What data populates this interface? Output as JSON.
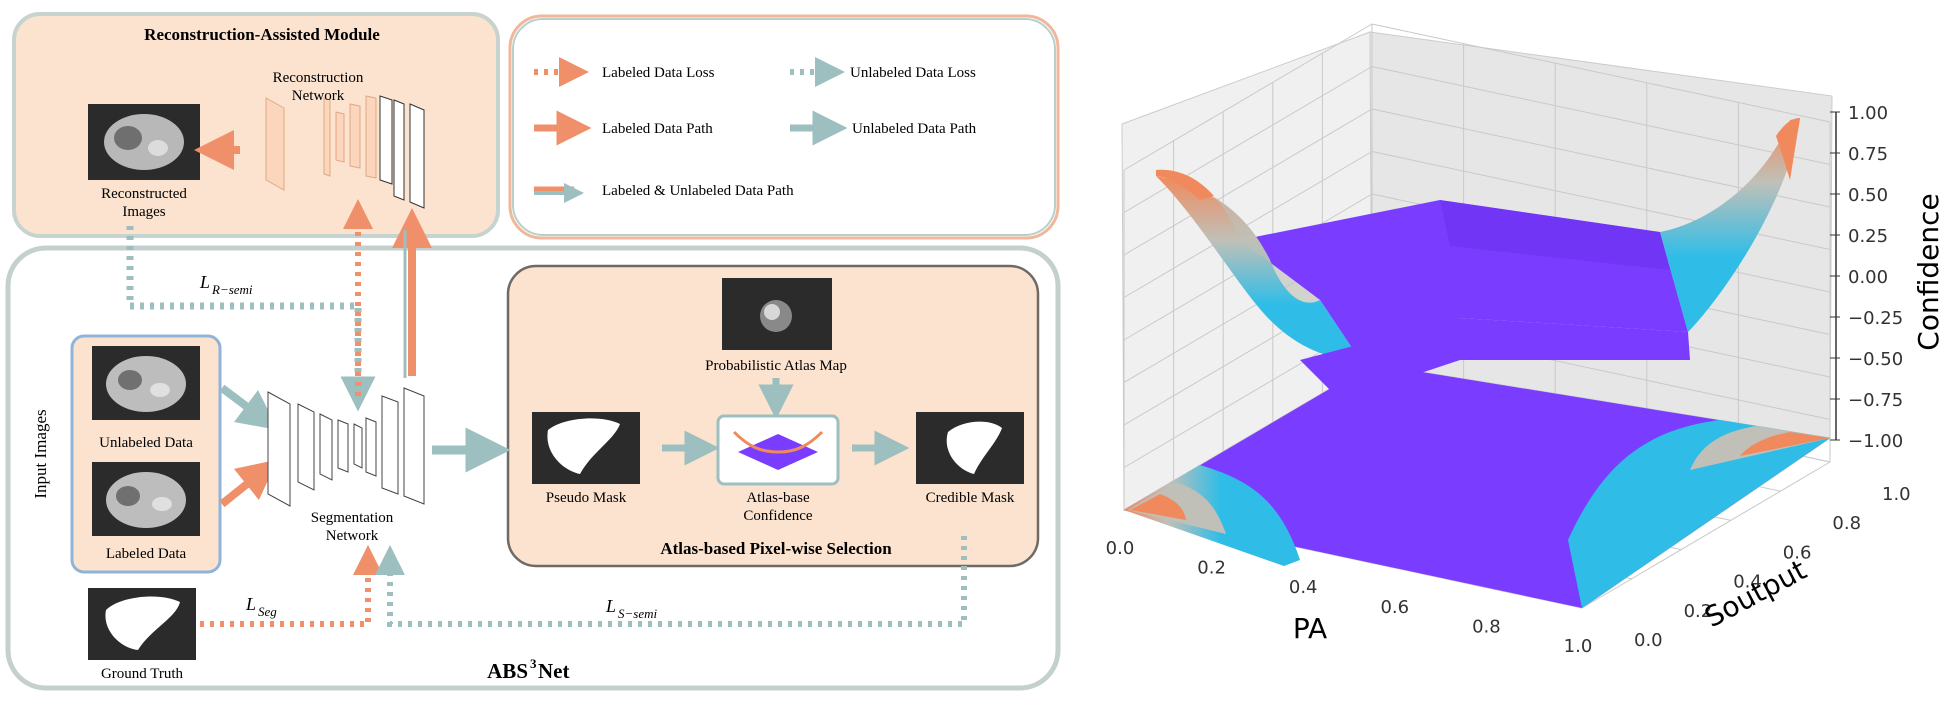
{
  "diagram": {
    "recon_module_title": "Reconstruction-Assisted Module",
    "recon_network_line1": "Reconstruction",
    "recon_network_line2": "Network",
    "reconstructed_line1": "Reconstructed",
    "reconstructed_line2": "Images",
    "legend": {
      "labeled_loss": "Labeled Data Loss",
      "unlabeled_loss": "Unlabeled Data Loss",
      "labeled_path": "Labeled Data Path",
      "unlabeled_path": "Unlabeled Data Path",
      "both_path": "Labeled & Unlabeled Data Path"
    },
    "loss_r_semi_main": "L",
    "loss_r_semi_sub": "R−semi",
    "loss_seg_main": "L",
    "loss_seg_sub": "Seg",
    "loss_s_semi_main": "L",
    "loss_s_semi_sub": "S−semi",
    "input_images": "Input Images",
    "unlabeled_data": "Unlabeled Data",
    "labeled_data": "Labeled Data",
    "ground_truth": "Ground Truth",
    "seg_network_line1": "Segmentation",
    "seg_network_line2": "Network",
    "prob_atlas": "Probabilistic Atlas Map",
    "pseudo_mask": "Pseudo Mask",
    "atlas_conf_line1": "Atlas-base",
    "atlas_conf_line2": "Confidence",
    "credible_mask": "Credible Mask",
    "atlas_selection_title": "Atlas-based Pixel-wise Selection",
    "net_name_a": "ABS",
    "net_name_sup": "3",
    "net_name_b": "Net",
    "colors": {
      "labeled": "#f0906a",
      "unlabeled": "#9dbfbf",
      "panel_fill": "#fbe3cf",
      "outer_stroke": "#b8c8c4"
    }
  },
  "chart_data": {
    "type": "surface3d",
    "xlabel": "PA",
    "ylabel": "Soutput",
    "zlabel": "Confidence",
    "x_ticks": [
      "0.0",
      "0.2",
      "0.4",
      "0.6",
      "0.8",
      "1.0"
    ],
    "y_ticks": [
      "0.0",
      "0.2",
      "0.4",
      "0.6",
      "0.8",
      "1.0"
    ],
    "z_ticks": [
      "1.00",
      "0.75",
      "0.50",
      "0.25",
      "0.00",
      "−0.25",
      "−0.50",
      "−0.75",
      "−1.00"
    ],
    "xlim": [
      0,
      1
    ],
    "ylim": [
      0,
      1
    ],
    "zlim": [
      -1,
      1
    ],
    "surface_colors": [
      "#7a3cff",
      "#2fbde8",
      "#c0c0b8",
      "#f08a5d"
    ],
    "grid": true
  }
}
